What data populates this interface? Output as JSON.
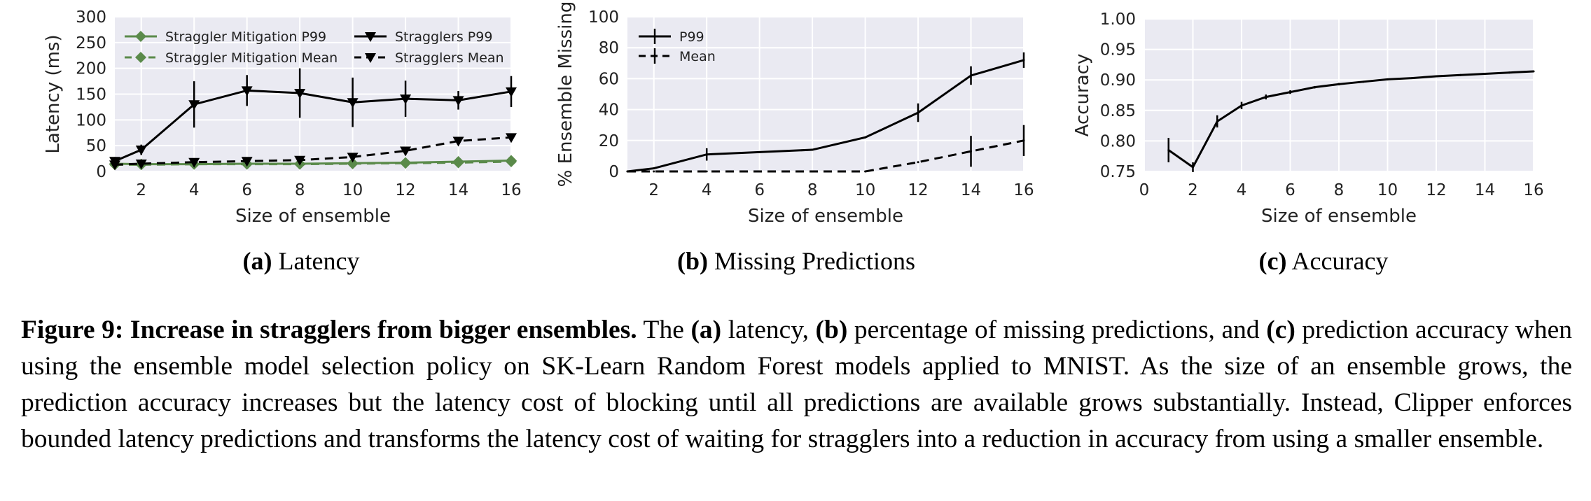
{
  "chart_data": [
    {
      "type": "line",
      "subcaption_letter": "(a)",
      "subcaption_title": "Latency",
      "xlabel": "Size of ensemble",
      "ylabel": "Latency (ms)",
      "xlim": [
        1,
        16
      ],
      "ylim": [
        0,
        300
      ],
      "xticks": [
        2,
        4,
        6,
        8,
        10,
        12,
        14,
        16
      ],
      "yticks": [
        0,
        50,
        100,
        150,
        200,
        250,
        300
      ],
      "grid": true,
      "legend_position": "top",
      "x": [
        1,
        2,
        4,
        6,
        8,
        10,
        12,
        14,
        16
      ],
      "series": [
        {
          "name": "Straggler Mitigation P99",
          "color": "#5a8a4a",
          "marker": "diamond",
          "dash": "solid",
          "values": [
            15,
            14,
            14,
            15,
            15,
            16,
            17,
            19,
            21
          ],
          "err": [
            0,
            0,
            0,
            0,
            0,
            0,
            0,
            0,
            0
          ]
        },
        {
          "name": "Straggler Mitigation Mean",
          "color": "#5a8a4a",
          "marker": "diamond",
          "dash": "dashed",
          "values": [
            13,
            13,
            14,
            14,
            14,
            15,
            16,
            17,
            19
          ],
          "err": [
            0,
            0,
            0,
            0,
            0,
            0,
            0,
            0,
            0
          ]
        },
        {
          "name": "Stragglers P99",
          "color": "#000000",
          "marker": "triangle-down",
          "dash": "solid",
          "values": [
            20,
            42,
            130,
            157,
            152,
            134,
            141,
            138,
            155
          ],
          "err": [
            8,
            10,
            45,
            30,
            48,
            48,
            35,
            18,
            30
          ]
        },
        {
          "name": "Stragglers Mean",
          "color": "#000000",
          "marker": "triangle-down",
          "dash": "dashed",
          "values": [
            13,
            15,
            18,
            20,
            22,
            28,
            40,
            59,
            66
          ],
          "err": [
            0,
            0,
            0,
            0,
            0,
            0,
            0,
            0,
            0
          ]
        }
      ]
    },
    {
      "type": "line",
      "subcaption_letter": "(b)",
      "subcaption_title": "Missing Predictions",
      "xlabel": "Size of ensemble",
      "ylabel": "% Ensemble Missing",
      "xlim": [
        1,
        16
      ],
      "ylim": [
        0,
        100
      ],
      "xticks": [
        2,
        4,
        6,
        8,
        10,
        12,
        14,
        16
      ],
      "yticks": [
        0,
        20,
        40,
        60,
        80,
        100
      ],
      "grid": true,
      "legend_position": "top-left",
      "x": [
        1,
        2,
        4,
        6,
        8,
        10,
        12,
        14,
        16
      ],
      "series": [
        {
          "name": "P99",
          "color": "#000000",
          "marker": "none",
          "dash": "solid",
          "values": [
            0,
            2,
            11,
            12.5,
            14,
            22,
            38,
            62,
            72
          ],
          "err": [
            0,
            0,
            4,
            0,
            0,
            0,
            6,
            6,
            5
          ]
        },
        {
          "name": "Mean",
          "color": "#000000",
          "marker": "none",
          "dash": "dashed",
          "values": [
            0,
            0,
            0,
            0,
            0,
            0,
            6,
            13,
            20
          ],
          "err": [
            0,
            0,
            0,
            0,
            0,
            0,
            0,
            10,
            10
          ]
        }
      ]
    },
    {
      "type": "line",
      "subcaption_letter": "(c)",
      "subcaption_title": "Accuracy",
      "xlabel": "Size of ensemble",
      "ylabel": "Accuracy",
      "xlim": [
        0,
        16
      ],
      "ylim": [
        0.75,
        1.0
      ],
      "xticks": [
        0,
        2,
        4,
        6,
        8,
        10,
        12,
        14,
        16
      ],
      "yticks": [
        0.75,
        0.8,
        0.85,
        0.9,
        0.95,
        1.0
      ],
      "ytick_labels": [
        "0.75",
        "0.80",
        "0.85",
        "0.90",
        "0.95",
        "1.00"
      ],
      "grid": true,
      "x": [
        1,
        2,
        3,
        4,
        5,
        6,
        7,
        8,
        9,
        10,
        11,
        12,
        13,
        14,
        15,
        16
      ],
      "series": [
        {
          "color": "#000000",
          "marker": "none",
          "dash": "solid",
          "values": [
            0.785,
            0.757,
            0.832,
            0.858,
            0.872,
            0.88,
            0.888,
            0.893,
            0.897,
            0.901,
            0.903,
            0.906,
            0.908,
            0.91,
            0.912,
            0.914
          ],
          "err": [
            0.02,
            0.008,
            0.01,
            0.006,
            0.004,
            0.003,
            0.002,
            0.002,
            0.001,
            0.001,
            0.001,
            0.001,
            0.001,
            0.001,
            0.001,
            0.001
          ]
        }
      ]
    }
  ],
  "caption": {
    "lead_bold": "Figure 9: Increase in stragglers from bigger ensembles.",
    "t1": " The ",
    "a": "(a)",
    "t2": " latency, ",
    "b": "(b)",
    "t3": " percentage of missing predictions, and ",
    "c": "(c)",
    "t4": " prediction accuracy when using the ensemble model selection policy on SK-Learn Random Forest models applied to MNIST. As the size of an ensemble grows, the prediction accuracy increases but the latency cost of blocking until all predictions are available grows substantially. Instead, Clipper enforces bounded latency predictions and transforms the latency cost of waiting for stragglers into a reduction in accuracy from using a smaller ensemble."
  },
  "colors": {
    "plot_background": "#eaeaf2",
    "grid": "#ffffff",
    "green": "#5a8a4a",
    "black": "#000000"
  }
}
